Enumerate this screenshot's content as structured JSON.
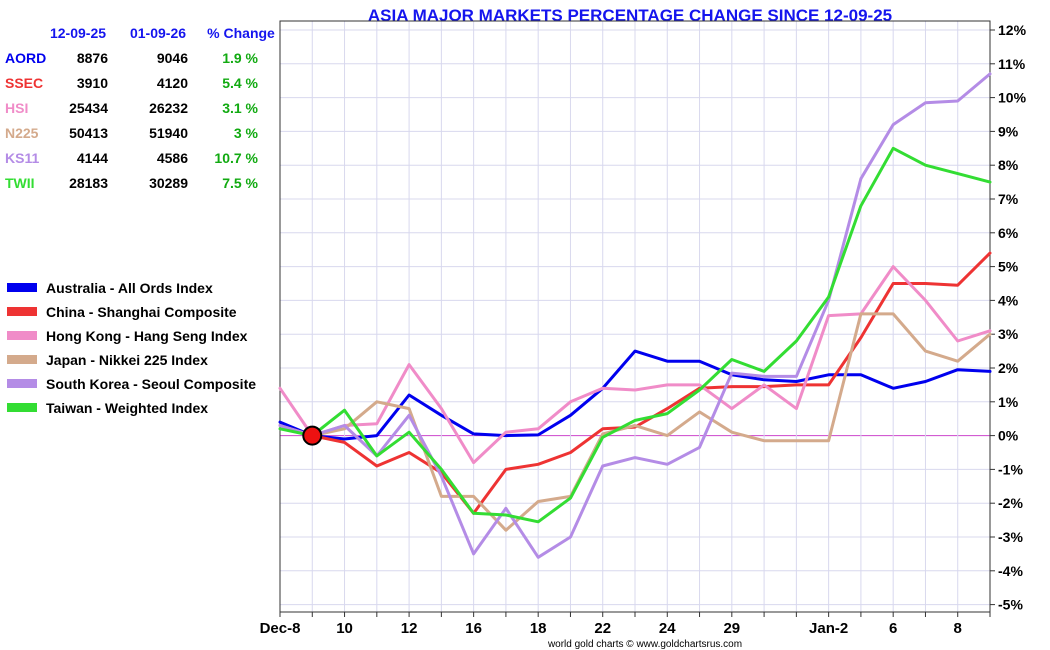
{
  "chart_data": {
    "type": "line",
    "title": "ASIA MAJOR MARKETS PERCENTAGE CHANGE SINCE 12-09-25",
    "xlabel": "",
    "ylabel": "",
    "ylim": [
      -5,
      12
    ],
    "y_ticks": [
      "-5%",
      "-4%",
      "-3%",
      "-2%",
      "-1%",
      "0%",
      "1%",
      "2%",
      "3%",
      "4%",
      "5%",
      "6%",
      "7%",
      "8%",
      "9%",
      "10%",
      "11%",
      "12%"
    ],
    "x_tick_labels": [
      {
        "i": 0,
        "label": "Dec-8"
      },
      {
        "i": 2,
        "label": "10"
      },
      {
        "i": 4,
        "label": "12"
      },
      {
        "i": 6,
        "label": "16"
      },
      {
        "i": 8,
        "label": "18"
      },
      {
        "i": 10,
        "label": "22"
      },
      {
        "i": 12,
        "label": "24"
      },
      {
        "i": 14,
        "label": "29"
      },
      {
        "i": 17,
        "label": "Jan-2"
      },
      {
        "i": 19,
        "label": "6"
      },
      {
        "i": 21,
        "label": "8"
      }
    ],
    "x_count": 23,
    "baseline_index": 1,
    "grid": true,
    "legend_position": "left",
    "credit": "world gold charts © www.goldchartsrus.com",
    "table": {
      "headers": [
        "12-09-25",
        "01-09-26",
        "% Change"
      ],
      "rows": [
        {
          "code": "AORD",
          "start": "8876",
          "end": "9046",
          "change": "1.9 %",
          "color": "#0000ee"
        },
        {
          "code": "SSEC",
          "start": "3910",
          "end": "4120",
          "change": "5.4 %",
          "color": "#ee3333"
        },
        {
          "code": "HSI",
          "start": "25434",
          "end": "26232",
          "change": "3.1 %",
          "color": "#f08cc8"
        },
        {
          "code": "N225",
          "start": "50413",
          "end": "51940",
          "change": "3 %",
          "color": "#d4aa8c"
        },
        {
          "code": "KS11",
          "start": "4144",
          "end": "4586",
          "change": "10.7 %",
          "color": "#b48ce6"
        },
        {
          "code": "TWII",
          "start": "28183",
          "end": "30289",
          "change": "7.5 %",
          "color": "#33dd33"
        }
      ]
    },
    "series": [
      {
        "name": "Australia - All Ords Index",
        "color": "#0000ee",
        "values": [
          0.4,
          0,
          -0.1,
          0,
          1.2,
          0.6,
          0.05,
          0,
          0.02,
          0.6,
          1.4,
          2.5,
          2.2,
          2.2,
          1.8,
          1.65,
          1.6,
          1.8,
          1.8,
          1.4,
          1.6,
          1.95,
          1.9
        ]
      },
      {
        "name": "China - Shanghai Composite",
        "color": "#ee3333",
        "values": [
          0.3,
          0,
          -0.2,
          -0.9,
          -0.5,
          -1.1,
          -2.3,
          -1.0,
          -0.85,
          -0.5,
          0.2,
          0.25,
          0.8,
          1.4,
          1.45,
          1.45,
          1.5,
          1.5,
          2.9,
          4.5,
          4.5,
          4.45,
          5.4
        ]
      },
      {
        "name": "Hong Kong - Hang Seng Index",
        "color": "#f08cc8",
        "values": [
          1.4,
          0,
          0.3,
          0.35,
          2.1,
          0.8,
          -0.8,
          0.1,
          0.2,
          1.0,
          1.4,
          1.35,
          1.5,
          1.5,
          0.8,
          1.5,
          0.8,
          3.55,
          3.6,
          5.0,
          4.0,
          2.8,
          3.1
        ]
      },
      {
        "name": "Japan - Nikkei 225 Index",
        "color": "#d4aa8c",
        "values": [
          0.3,
          0,
          0.2,
          1.0,
          0.8,
          -1.8,
          -1.8,
          -2.8,
          -1.95,
          -1.8,
          0.05,
          0.3,
          0.0,
          0.7,
          0.1,
          -0.15,
          -0.15,
          -0.15,
          3.6,
          3.6,
          2.5,
          2.2,
          3.0
        ]
      },
      {
        "name": "South Korea - Seoul Composite",
        "color": "#b48ce6",
        "values": [
          0.3,
          0,
          0.3,
          -0.6,
          0.6,
          -1.2,
          -3.5,
          -2.15,
          -3.6,
          -3.0,
          -0.9,
          -0.65,
          -0.85,
          -0.35,
          1.85,
          1.75,
          1.75,
          4.0,
          7.6,
          9.2,
          9.85,
          9.9,
          10.7
        ]
      },
      {
        "name": "Taiwan - Weighted Index",
        "color": "#33dd33",
        "values": [
          0.2,
          0,
          0.75,
          -0.6,
          0.1,
          -1.0,
          -2.3,
          -2.35,
          -2.55,
          -1.85,
          -0.05,
          0.45,
          0.65,
          1.35,
          2.25,
          1.9,
          2.8,
          4.1,
          6.8,
          8.5,
          8.0,
          7.75,
          7.5
        ]
      }
    ]
  }
}
